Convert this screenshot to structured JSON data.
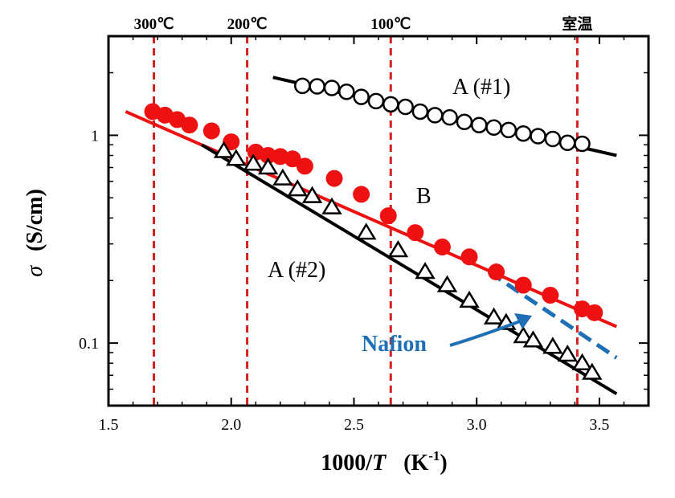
{
  "chart_data": {
    "type": "scatter",
    "x_axis": {
      "range": [
        1.5,
        3.7
      ],
      "ticks": [
        1.5,
        2.0,
        2.5,
        3.0,
        3.5
      ],
      "tick_labels": [
        "1.5",
        "2.0",
        "2.5",
        "3.0",
        "3.5"
      ],
      "label_main": "1000/",
      "label_var": "T",
      "label_unit": "(K",
      "label_sup": "-1",
      "label_close": ")"
    },
    "y_axis": {
      "scale": "log",
      "range": [
        0.05,
        3.0
      ],
      "ticks": [
        0.1,
        1
      ],
      "tick_labels": [
        "0.1",
        "1"
      ],
      "label_symbol": "σ",
      "label_unit": "(S/cm)"
    },
    "reference_lines": [
      {
        "x": 1.685,
        "label": "300℃"
      },
      {
        "x": 2.065,
        "label": "200℃"
      },
      {
        "x": 2.65,
        "label": "100℃"
      },
      {
        "x": 3.41,
        "label": "室温"
      }
    ],
    "series": [
      {
        "name": "A (#1)",
        "marker": "open-circle",
        "color": "#000000",
        "fit": [
          [
            2.17,
            1.9
          ],
          [
            3.57,
            0.8
          ]
        ],
        "points": [
          [
            2.29,
            1.73
          ],
          [
            2.35,
            1.72
          ],
          [
            2.41,
            1.69
          ],
          [
            2.47,
            1.62
          ],
          [
            2.53,
            1.53
          ],
          [
            2.59,
            1.46
          ],
          [
            2.65,
            1.41
          ],
          [
            2.71,
            1.37
          ],
          [
            2.77,
            1.3
          ],
          [
            2.83,
            1.25
          ],
          [
            2.89,
            1.22
          ],
          [
            2.95,
            1.16
          ],
          [
            3.01,
            1.12
          ],
          [
            3.07,
            1.09
          ],
          [
            3.13,
            1.06
          ],
          [
            3.19,
            1.02
          ],
          [
            3.25,
            0.99
          ],
          [
            3.31,
            0.96
          ],
          [
            3.37,
            0.92
          ],
          [
            3.43,
            0.91
          ]
        ]
      },
      {
        "name": "B",
        "marker": "filled-circle",
        "color": "#ee1111",
        "fit": [
          [
            1.57,
            1.3
          ],
          [
            3.57,
            0.12
          ]
        ],
        "points": [
          [
            1.68,
            1.3
          ],
          [
            1.73,
            1.25
          ],
          [
            1.78,
            1.19
          ],
          [
            1.83,
            1.12
          ],
          [
            1.92,
            1.05
          ],
          [
            2.0,
            0.93
          ],
          [
            2.1,
            0.83
          ],
          [
            2.15,
            0.8
          ],
          [
            2.2,
            0.79
          ],
          [
            2.25,
            0.77
          ],
          [
            2.3,
            0.71
          ],
          [
            2.42,
            0.62
          ],
          [
            2.53,
            0.52
          ],
          [
            2.64,
            0.41
          ],
          [
            2.75,
            0.34
          ],
          [
            2.86,
            0.29
          ],
          [
            2.97,
            0.26
          ],
          [
            3.08,
            0.22
          ],
          [
            3.19,
            0.19
          ],
          [
            3.3,
            0.17
          ],
          [
            3.43,
            0.146
          ],
          [
            3.48,
            0.14
          ]
        ]
      },
      {
        "name": "A (#2)",
        "marker": "open-triangle",
        "color": "#000000",
        "fit": [
          [
            1.88,
            0.9
          ],
          [
            3.57,
            0.057
          ]
        ],
        "points": [
          [
            1.97,
            0.84
          ],
          [
            2.02,
            0.77
          ],
          [
            2.09,
            0.73
          ],
          [
            2.15,
            0.7
          ],
          [
            2.21,
            0.62
          ],
          [
            2.27,
            0.55
          ],
          [
            2.33,
            0.51
          ],
          [
            2.41,
            0.45
          ],
          [
            2.55,
            0.34
          ],
          [
            2.68,
            0.28
          ],
          [
            2.79,
            0.22
          ],
          [
            2.88,
            0.19
          ],
          [
            2.97,
            0.16
          ],
          [
            3.07,
            0.133
          ],
          [
            3.12,
            0.125
          ],
          [
            3.19,
            0.108
          ],
          [
            3.23,
            0.103
          ],
          [
            3.31,
            0.096
          ],
          [
            3.37,
            0.088
          ],
          [
            3.43,
            0.08
          ],
          [
            3.47,
            0.072
          ]
        ]
      },
      {
        "name": "Nafion",
        "marker": "dashed-line",
        "color": "#1f6fb5",
        "fit": [
          [
            3.05,
            0.22
          ],
          [
            3.57,
            0.085
          ]
        ],
        "points": []
      }
    ],
    "grid": false,
    "legend": "none"
  }
}
